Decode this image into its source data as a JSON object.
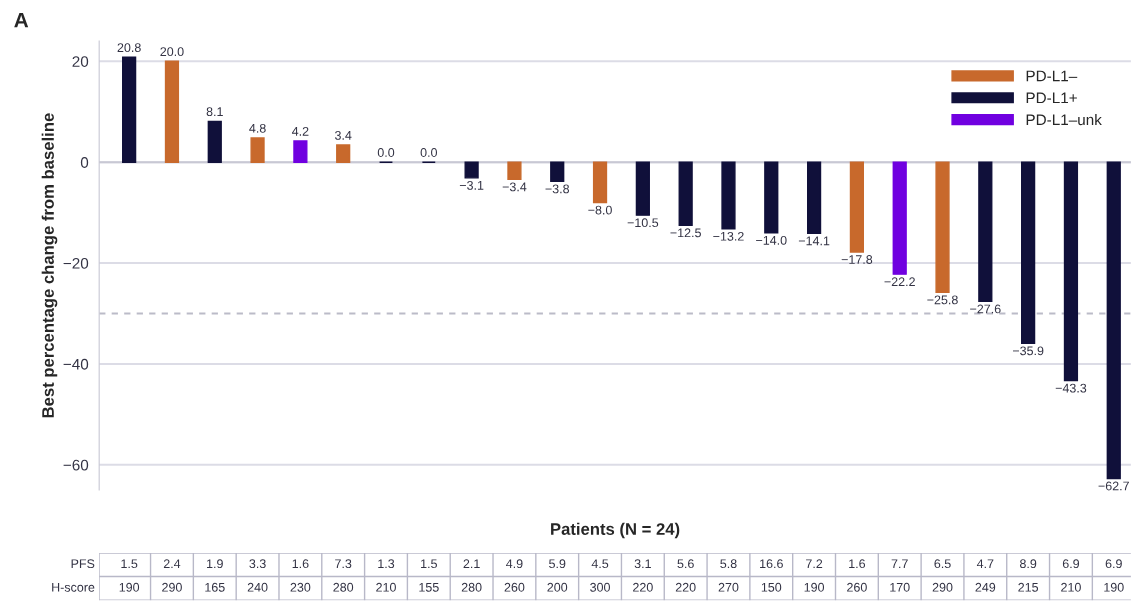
{
  "chart_data": {
    "type": "bar",
    "title": "A",
    "xlabel": "Patients (N = 24)",
    "ylabel": "Best percentage change from baseline",
    "categories": [
      null,
      null,
      null,
      null,
      null,
      null,
      null,
      null,
      null,
      null,
      null,
      null,
      null,
      null,
      null,
      null,
      null,
      null,
      null,
      null,
      null,
      null,
      null,
      null
    ],
    "series": [
      {
        "name": "PD-L1–",
        "color": "#c8692c",
        "values": [
          null,
          20.0,
          null,
          4.8,
          null,
          3.4,
          null,
          null,
          null,
          -3.4,
          null,
          -8.0,
          null,
          null,
          null,
          null,
          null,
          -17.8,
          null,
          -25.8,
          null,
          null,
          null,
          null
        ],
        "value_labels": [
          null,
          "20.0",
          null,
          "4.8",
          null,
          "3.4",
          null,
          null,
          null,
          "−3.4",
          null,
          "−8.0",
          null,
          null,
          null,
          null,
          null,
          "−17.8",
          null,
          "−25.8",
          null,
          null,
          null,
          null
        ]
      },
      {
        "name": "PD-L1+",
        "color": "#10103a",
        "values": [
          20.8,
          null,
          8.1,
          null,
          null,
          null,
          0.0,
          0.0,
          -3.1,
          null,
          -3.8,
          null,
          -10.5,
          -12.5,
          -13.2,
          -14.0,
          -14.1,
          null,
          null,
          null,
          -27.6,
          -35.9,
          -43.3,
          -62.7
        ],
        "value_labels": [
          "20.8",
          null,
          "8.1",
          null,
          null,
          null,
          "0.0",
          "0.0",
          "−3.1",
          null,
          "−3.8",
          null,
          "−10.5",
          "−12.5",
          "−13.2",
          "−14.0",
          "−14.1",
          null,
          null,
          null,
          "−27.6",
          "−35.9",
          "−43.3",
          "−62.7"
        ]
      },
      {
        "name": "PD-L1–unk",
        "color": "#7000e0",
        "values": [
          null,
          null,
          null,
          null,
          4.2,
          null,
          null,
          null,
          null,
          null,
          null,
          null,
          null,
          null,
          null,
          null,
          null,
          null,
          -22.2,
          null,
          null,
          null,
          null,
          null
        ],
        "value_labels": [
          null,
          null,
          null,
          null,
          "4.2",
          null,
          null,
          null,
          null,
          null,
          null,
          null,
          null,
          null,
          null,
          null,
          null,
          null,
          "−22.2",
          null,
          null,
          null,
          null,
          null
        ]
      }
    ],
    "ylim": [
      -65,
      24
    ],
    "yticks": [
      {
        "value": -60,
        "label": "−60"
      },
      {
        "value": -40,
        "label": "−40"
      },
      {
        "value": -20,
        "label": "−20"
      },
      0,
      20
    ],
    "grid": "y",
    "legend": "top right",
    "ref_lines": [
      {
        "axis": "y",
        "value": -30,
        "color": "#bbbbc8",
        "line_style": "dashed"
      }
    ],
    "annotations": [
      "PFS",
      "1.5",
      "2.4",
      "1.9",
      "3.3",
      "1.6",
      "7.3",
      "1.3",
      "1.5",
      "2.1",
      "4.9",
      "5.9",
      "4.5",
      "3.1",
      "5.6",
      "5.8",
      "16.6",
      "7.2",
      "1.6",
      "7.7",
      "6.5",
      "4.7",
      "8.9",
      "6.9",
      "6.9",
      "H-score",
      "190",
      "290",
      "165",
      "240",
      "230",
      "280",
      "210",
      "155",
      "280",
      "260",
      "200",
      "300",
      "220",
      "220",
      "270",
      "150",
      "190",
      "260",
      "170",
      "290",
      "249",
      "215",
      "210",
      "190"
    ]
  }
}
